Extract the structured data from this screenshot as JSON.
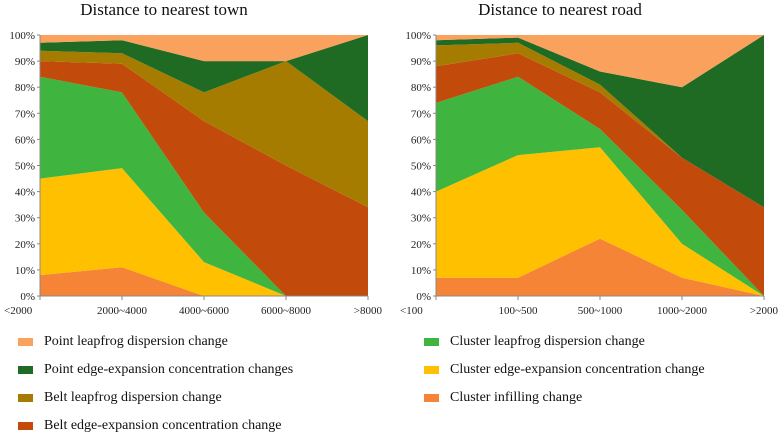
{
  "chart_data": [
    {
      "type": "area",
      "stacked": true,
      "title": "Distance to nearest town",
      "categories": [
        "<2000",
        "2000~4000",
        "4000~6000",
        "6000~8000",
        ">8000"
      ],
      "ylim": [
        0,
        100
      ],
      "yticks": [
        "0%",
        "10%",
        "20%",
        "30%",
        "40%",
        "50%",
        "60%",
        "70%",
        "80%",
        "90%",
        "100%"
      ],
      "series": [
        {
          "name": "Cluster infilling change",
          "values": [
            8,
            11,
            0,
            0,
            0
          ]
        },
        {
          "name": "Cluster edge-expansion concentration change",
          "values": [
            37,
            38,
            13,
            0,
            0
          ]
        },
        {
          "name": "Cluster leapfrog dispersion change",
          "values": [
            39,
            29,
            19,
            0,
            0
          ]
        },
        {
          "name": "Belt edge-expansion concentration change",
          "values": [
            6,
            11,
            35,
            50,
            34
          ]
        },
        {
          "name": "Belt leapfrog dispersion change",
          "values": [
            4,
            4,
            11,
            40,
            33
          ]
        },
        {
          "name": "Point edge-expansion concentration changes",
          "values": [
            3,
            5,
            12,
            0,
            33
          ]
        },
        {
          "name": "Point leapfrog dispersion change",
          "values": [
            3,
            2,
            10,
            10,
            0
          ]
        }
      ]
    },
    {
      "type": "area",
      "stacked": true,
      "title": "Distance to nearest road",
      "categories": [
        "<100",
        "100~500",
        "500~1000",
        "1000~2000",
        ">2000"
      ],
      "ylim": [
        0,
        100
      ],
      "yticks": [
        "0%",
        "10%",
        "20%",
        "30%",
        "40%",
        "50%",
        "60%",
        "70%",
        "80%",
        "90%",
        "100%"
      ],
      "series": [
        {
          "name": "Cluster infilling change",
          "values": [
            7,
            7,
            22,
            7,
            0
          ]
        },
        {
          "name": "Cluster edge-expansion concentration change",
          "values": [
            33,
            47,
            35,
            13,
            0
          ]
        },
        {
          "name": "Cluster leapfrog dispersion change",
          "values": [
            34,
            30,
            7,
            13,
            0
          ]
        },
        {
          "name": "Belt edge-expansion concentration change",
          "values": [
            14,
            9,
            14,
            20,
            34
          ]
        },
        {
          "name": "Belt leapfrog dispersion change",
          "values": [
            8,
            4,
            3,
            0,
            0
          ]
        },
        {
          "name": "Point edge-expansion concentration changes",
          "values": [
            2,
            2,
            5,
            27,
            66
          ]
        },
        {
          "name": "Point leapfrog dispersion change",
          "values": [
            2,
            1,
            14,
            20,
            0
          ]
        }
      ]
    }
  ],
  "colors": {
    "Point leapfrog dispersion change": "#f9a15d",
    "Point edge-expansion concentration changes": "#1f6b23",
    "Belt leapfrog dispersion change": "#a67c00",
    "Belt edge-expansion concentration change": "#c24a0a",
    "Cluster leapfrog dispersion change": "#3fb43f",
    "Cluster edge-expansion concentration change": "#ffc000",
    "Cluster infilling change": "#f58436"
  },
  "legend": [
    {
      "label": "Point leapfrog dispersion change"
    },
    {
      "label": "Point edge-expansion concentration changes"
    },
    {
      "label": "Belt leapfrog dispersion change"
    },
    {
      "label": "Belt edge-expansion concentration change"
    },
    {
      "label": "Cluster leapfrog dispersion change"
    },
    {
      "label": "Cluster edge-expansion concentration change"
    },
    {
      "label": "Cluster infilling change"
    }
  ]
}
